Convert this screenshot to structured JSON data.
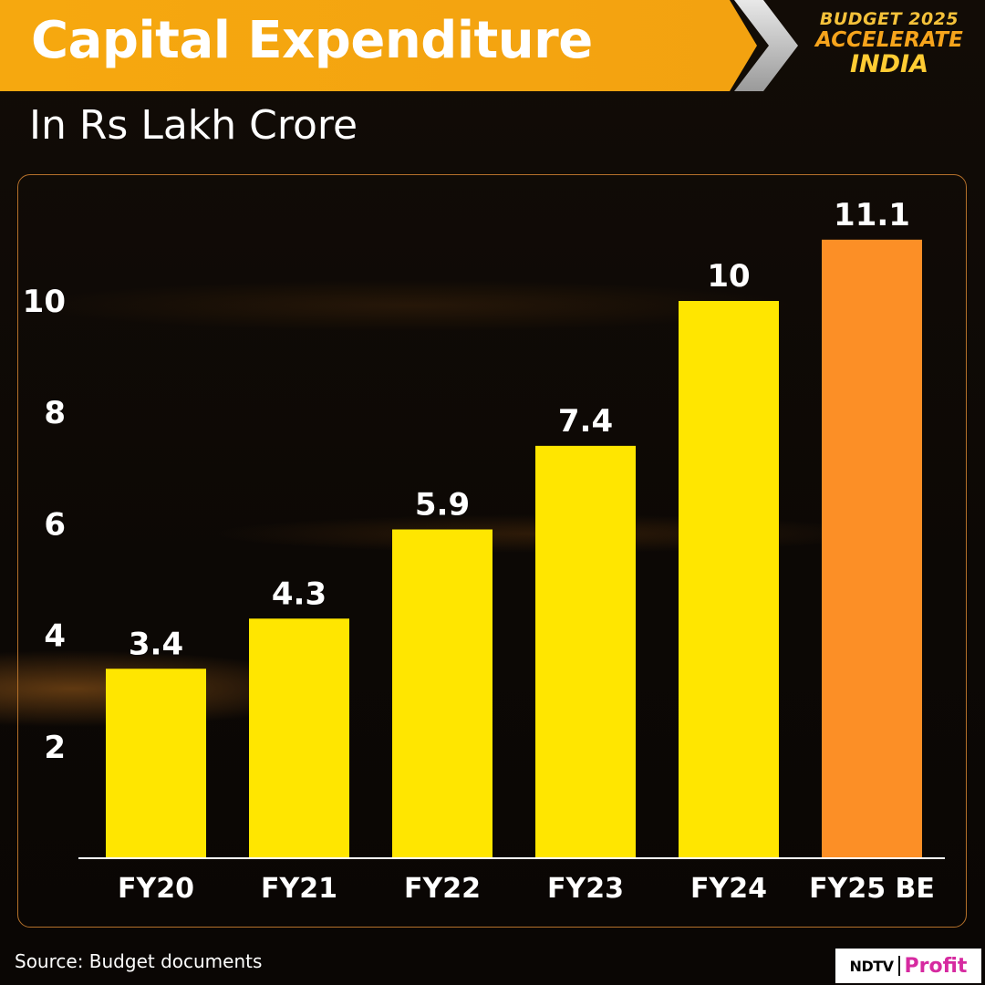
{
  "header": {
    "title": "Capital Expenditure",
    "subtitle": "In Rs Lakh Crore"
  },
  "logo": {
    "line1": "BUDGET 2025",
    "line2": "ACCELERATE",
    "line3": "INDIA"
  },
  "footer": {
    "source": "Source: Budget documents",
    "brand_left": "NDTV",
    "brand_right": "Profit"
  },
  "colors": {
    "banner": "#f6a80f",
    "bar_actual": "#ffe600",
    "bar_estimate": "#fc8f26",
    "text": "#ffffff",
    "panel_border": "#b4702a"
  },
  "chart_data": {
    "type": "bar",
    "title": "Capital Expenditure",
    "subtitle": "In Rs Lakh Crore",
    "categories": [
      "FY20",
      "FY21",
      "FY22",
      "FY23",
      "FY24",
      "FY25 BE"
    ],
    "values": [
      3.4,
      4.3,
      5.9,
      7.4,
      10,
      11.1
    ],
    "data_labels": [
      "3.4",
      "4.3",
      "5.9",
      "7.4",
      "10",
      "11.1"
    ],
    "highlight": [
      false,
      false,
      false,
      false,
      false,
      true
    ],
    "yticks": [
      2,
      4,
      6,
      8,
      10
    ],
    "ylim": [
      0,
      12
    ],
    "grid": false,
    "legend": "none"
  }
}
